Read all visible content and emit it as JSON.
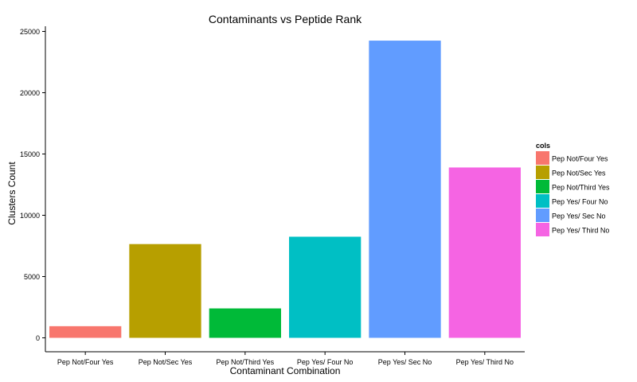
{
  "chart_data": {
    "type": "bar",
    "title": "Contaminants vs Peptide Rank",
    "xlabel": "Contaminant Combination",
    "ylabel": "Clusters Count",
    "categories": [
      "Pep Not/Four Yes",
      "Pep Not/Sec Yes",
      "Pep Not/Third Yes",
      "Pep Yes/ Four No",
      "Pep Yes/ Sec No",
      "Pep Yes/ Third No"
    ],
    "values": [
      950,
      7650,
      2400,
      8250,
      24250,
      13900
    ],
    "colors": [
      "#F8766D",
      "#B79F00",
      "#00BA38",
      "#00BFC4",
      "#619CFF",
      "#F564E3"
    ],
    "ylim": [
      0,
      25500
    ],
    "yticks": [
      0,
      5000,
      10000,
      15000,
      20000,
      25000
    ],
    "grid": false,
    "legend": {
      "title": "cols",
      "placement": "right",
      "entries": [
        "Pep Not/Four Yes",
        "Pep Not/Sec Yes",
        "Pep Not/Third Yes",
        "Pep Yes/ Four No",
        "Pep Yes/ Sec No",
        "Pep Yes/ Third No"
      ]
    }
  }
}
